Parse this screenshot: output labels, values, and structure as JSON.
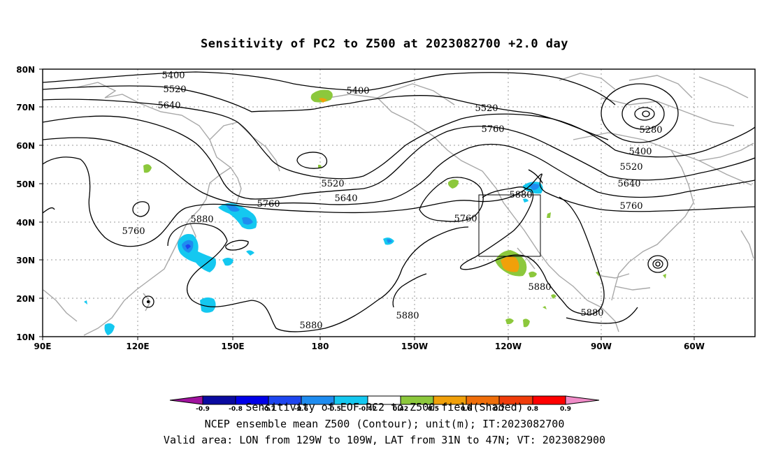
{
  "title": "Sensitivity of PC2 to Z500 at 2023082700 +2.0 day",
  "lat_ticks": [
    "80N",
    "70N",
    "60N",
    "50N",
    "40N",
    "30N",
    "20N",
    "10N"
  ],
  "lon_ticks": [
    "90E",
    "120E",
    "150E",
    "180",
    "150W",
    "120W",
    "90W",
    "60W"
  ],
  "contour_labels": [
    "5400",
    "5520",
    "5640",
    "5400",
    "5520",
    "5760",
    "5280",
    "5400",
    "5520",
    "5640",
    "5760",
    "5520",
    "5640",
    "5760",
    "5880",
    "5760",
    "5880",
    "5760",
    "5880",
    "5880",
    "5880",
    "5880"
  ],
  "colorbar": {
    "labels": [
      "-0.9",
      "-0.8",
      "-0.7",
      "-0.6",
      "-0.5",
      "-0.42",
      "0.42",
      "0.5",
      "0.6",
      "0.7",
      "0.8",
      "0.9"
    ],
    "colors": [
      "#a0129e",
      "#0a0aa0",
      "#0000e8",
      "#1e46f0",
      "#1e8cf0",
      "#14c8f0",
      "#ffffff",
      "#8cc83c",
      "#f0a00a",
      "#f06e0a",
      "#f03c0a",
      "#ff0000",
      "#f08cc8"
    ]
  },
  "footer": {
    "line1": "Sensitivity of EOF PC2 to Z500 field(Shaded)",
    "line2": "NCEP ensemble mean Z500 (Contour); unit(m); IT:2023082700",
    "line3": "Valid area: LON from 129W to 109W, LAT from 31N to 47N; VT: 2023082900"
  }
}
